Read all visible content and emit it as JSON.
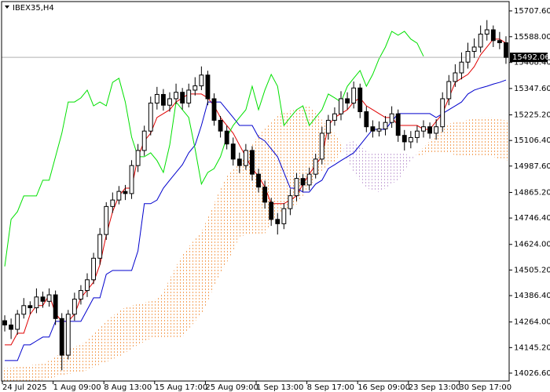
{
  "chart_data": {
    "type": "candlestick",
    "title": "IBEX35,H4",
    "categories": [
      "24 Jul 2025",
      null,
      null,
      null,
      null,
      null,
      null,
      null,
      "1 Aug 09:00",
      null,
      null,
      null,
      null,
      null,
      null,
      null,
      "8 Aug 13:00",
      null,
      null,
      null,
      null,
      null,
      null,
      null,
      "15 Aug 17:00",
      null,
      null,
      null,
      null,
      null,
      null,
      null,
      "25 Aug 09:00",
      null,
      null,
      null,
      null,
      null,
      null,
      null,
      "1 Sep 13:00",
      null,
      null,
      null,
      null,
      null,
      null,
      null,
      "8 Sep 17:00",
      null,
      null,
      null,
      null,
      null,
      null,
      null,
      "16 Sep 09:00",
      null,
      null,
      null,
      null,
      null,
      null,
      null,
      "23 Sep 13:00",
      null,
      null,
      null,
      null,
      null,
      null,
      null,
      "30 Sep 17:00",
      null,
      null,
      null,
      null,
      null,
      null,
      null
    ],
    "open": [
      14270,
      14250,
      14230,
      14300,
      14340,
      14330,
      14380,
      14360,
      14390,
      14280,
      14110,
      14300,
      14370,
      14410,
      14460,
      14560,
      14670,
      14800,
      14830,
      14870,
      14860,
      14990,
      15060,
      15150,
      15280,
      15320,
      15270,
      15300,
      15330,
      15280,
      15340,
      15360,
      15410,
      15300,
      15200,
      15150,
      15090,
      15020,
      14990,
      15060,
      14950,
      14890,
      14820,
      14740,
      14720,
      14790,
      14850,
      14930,
      14900,
      14950,
      15020,
      15140,
      15200,
      15230,
      15300,
      15280,
      15350,
      15240,
      15170,
      15150,
      15160,
      15190,
      15230,
      15130,
      15100,
      15120,
      15150,
      15170,
      15140,
      15170,
      15300,
      15380,
      15420,
      15470,
      15520,
      15540,
      15600,
      15620,
      15570,
      15560
    ],
    "high": [
      14295,
      14280,
      14320,
      14375,
      14360,
      14420,
      14405,
      14420,
      14410,
      14305,
      14320,
      14400,
      14435,
      14490,
      14585,
      14700,
      14820,
      14865,
      14895,
      14900,
      15015,
      15090,
      15175,
      15310,
      15355,
      15345,
      15330,
      15370,
      15350,
      15370,
      15400,
      15450,
      15430,
      15325,
      15220,
      15175,
      15120,
      15050,
      15090,
      15080,
      14975,
      14920,
      14840,
      14770,
      14815,
      14880,
      14955,
      14950,
      14980,
      15045,
      15170,
      15225,
      15260,
      15335,
      15330,
      15380,
      15370,
      15265,
      15200,
      15195,
      15220,
      15265,
      15250,
      15155,
      15150,
      15175,
      15200,
      15190,
      15205,
      15330,
      15410,
      15460,
      15515,
      15560,
      15580,
      15640,
      15665,
      15640,
      15610,
      15590
    ],
    "low": [
      14220,
      14185,
      14205,
      14280,
      14300,
      14305,
      14330,
      14335,
      14250,
      14040,
      14090,
      14270,
      14345,
      14380,
      14440,
      14530,
      14645,
      14770,
      14810,
      14830,
      14835,
      14960,
      15035,
      15130,
      15250,
      15245,
      15240,
      15275,
      15250,
      15260,
      15315,
      15340,
      15270,
      15175,
      15120,
      15065,
      14990,
      14955,
      14970,
      14920,
      14865,
      14790,
      14710,
      14670,
      14695,
      14760,
      14825,
      14870,
      14875,
      14930,
      14995,
      15110,
      15175,
      15200,
      15250,
      15255,
      15210,
      15145,
      15120,
      15125,
      15130,
      15165,
      15100,
      15060,
      15070,
      15095,
      15120,
      15115,
      15110,
      15145,
      15270,
      15355,
      15390,
      15440,
      15490,
      15515,
      15570,
      15540,
      15530,
      15462
    ],
    "close": [
      14250,
      14230,
      14300,
      14340,
      14330,
      14380,
      14360,
      14390,
      14280,
      14110,
      14300,
      14370,
      14410,
      14460,
      14560,
      14670,
      14800,
      14830,
      14870,
      14860,
      14990,
      15060,
      15150,
      15280,
      15320,
      15270,
      15300,
      15330,
      15280,
      15340,
      15360,
      15410,
      15300,
      15200,
      15150,
      15090,
      15020,
      14990,
      15060,
      14950,
      14890,
      14820,
      14740,
      14720,
      14790,
      14850,
      14930,
      14900,
      14950,
      15020,
      15140,
      15200,
      15230,
      15300,
      15280,
      15350,
      15240,
      15170,
      15150,
      15160,
      15190,
      15230,
      15130,
      15100,
      15120,
      15150,
      15170,
      15140,
      15170,
      15300,
      15380,
      15420,
      15470,
      15520,
      15540,
      15600,
      15620,
      15570,
      15560,
      15492.06
    ],
    "up_color": "#ffffff",
    "down_color": "#000000",
    "edge_color": "#000000",
    "lines": [
      {
        "color": "#e00000",
        "values": [
          14158,
          14158,
          14212,
          14212,
          14300,
          14340,
          14340,
          14390,
          14303,
          14267,
          14267,
          14300,
          14376,
          14412,
          14449,
          14530,
          14667,
          14776,
          14849,
          14885,
          14885,
          15031,
          15104,
          15140,
          15213,
          15231,
          15249,
          15285,
          15304,
          15322,
          15322,
          15322,
          15304,
          15267,
          15213,
          15176,
          15140,
          15085,
          15031,
          14976,
          14940,
          14890,
          14813,
          14813,
          14813,
          14830,
          14849,
          14904,
          14950,
          14994,
          15031,
          15176,
          15213,
          15231,
          15249,
          15285,
          15304,
          15267,
          15249,
          15231,
          15213,
          15213,
          15176,
          15176,
          15176,
          15176,
          15158,
          15158,
          15195,
          15231,
          15304,
          15376,
          15395,
          15413,
          15449,
          15504,
          15540,
          15577,
          15577,
          15558
        ]
      },
      {
        "color": "#0000cd",
        "values": [
          14085,
          14085,
          14085,
          14158,
          14158,
          14176,
          14194,
          14194,
          14267,
          14267,
          14267,
          14267,
          14267,
          14321,
          14376,
          14376,
          14485,
          14503,
          14503,
          14503,
          14503,
          14594,
          14813,
          14813,
          14830,
          14885,
          14922,
          14958,
          14994,
          15049,
          15085,
          15176,
          15285,
          15285,
          15285,
          15249,
          15213,
          15176,
          15176,
          15176,
          15122,
          15104,
          15067,
          15031,
          14958,
          14885,
          14885,
          14867,
          14867,
          14904,
          14922,
          14976,
          14994,
          15013,
          15031,
          15049,
          15085,
          15122,
          15158,
          15158,
          15158,
          15195,
          15231,
          15231,
          15231,
          15231,
          15231,
          15231,
          15213,
          15231,
          15249,
          15267,
          15285,
          15322,
          15340,
          15350,
          15358,
          15368,
          15376,
          15387
        ]
      },
      {
        "color": "#00e000",
        "values": [
          14522,
          14740,
          14776,
          14849,
          14849,
          14849,
          14922,
          14922,
          15031,
          15140,
          15285,
          15285,
          15304,
          15340,
          15267,
          15285,
          15267,
          15376,
          15395,
          15285,
          15122,
          15031,
          15031,
          15049,
          15013,
          14958,
          15085,
          15285,
          15249,
          15213,
          15067,
          14904,
          14958,
          14976,
          15031,
          15122,
          15176,
          15213,
          15249,
          15358,
          15249,
          15340,
          15413,
          15358,
          15176,
          15213,
          15249,
          15267,
          15176,
          15213,
          15249,
          15322,
          15304,
          15285,
          15358,
          15395,
          15431,
          15358,
          15413,
          15486,
          15540,
          15613,
          15595,
          15613,
          15577,
          15558,
          15497,
          null,
          null,
          null,
          null,
          null,
          null,
          null,
          null,
          null,
          null,
          null,
          null,
          null
        ]
      }
    ],
    "cloud": {
      "up_color": "#f4a460",
      "down_color": "#c8a8d8",
      "span_a": [
        14049,
        14052,
        14056,
        14060,
        14063,
        14067,
        14070,
        14085,
        14103,
        14121,
        14136,
        14150,
        14158,
        14183,
        14212,
        14238,
        14267,
        14292,
        14314,
        14332,
        14340,
        14347,
        14354,
        14361,
        14372,
        14405,
        14463,
        14522,
        14576,
        14613,
        14649,
        14682,
        14747,
        14813,
        14885,
        14940,
        14976,
        14994,
        15038,
        15085,
        15133,
        15165,
        15195,
        15224,
        15238,
        15245,
        15249,
        15260,
        15267,
        15242,
        15202,
        15169,
        15140,
        15093,
        15013,
        14958,
        14922,
        14885,
        14874,
        14867,
        14885,
        14904,
        14922,
        14965,
        15013,
        15045,
        15074,
        15104,
        15133,
        15162,
        15184,
        15191,
        15195,
        15202,
        15209,
        15213,
        15213,
        15213,
        15205,
        15198
      ],
      "span_b": [
        13976,
        13976,
        13980,
        13983,
        13987,
        13990,
        13994,
        14001,
        14009,
        14016,
        14023,
        14027,
        14030,
        14041,
        14056,
        14067,
        14078,
        14092,
        14103,
        14121,
        14139,
        14158,
        14172,
        14187,
        14194,
        14194,
        14194,
        14194,
        14194,
        14231,
        14267,
        14300,
        14358,
        14431,
        14492,
        14540,
        14594,
        14660,
        14667,
        14667,
        14667,
        14674,
        14722,
        14769,
        14783,
        14798,
        14809,
        14849,
        14893,
        14929,
        14965,
        14994,
        15009,
        15049,
        15096,
        15104,
        15082,
        15056,
        15049,
        15049,
        15049,
        15049,
        15049,
        15049,
        15031,
        15031,
        15042,
        15049,
        15049,
        15049,
        15049,
        15038,
        15031,
        15031,
        15031,
        15031,
        15031,
        15031,
        15020,
        15013
      ]
    },
    "current_price": 15492.06,
    "current_price_color": "#b0b0b0",
    "ylim": [
      13990,
      15751
    ],
    "yticks": [
      {
        "value": 15707.6,
        "label": "15707.60"
      },
      {
        "value": 15588,
        "label": "15588.00"
      },
      {
        "value": 15468.4,
        "label": "15468.40"
      },
      {
        "value": 15347.6,
        "label": "15347.60"
      },
      {
        "value": 15225.2,
        "label": "15225.20"
      },
      {
        "value": 15106.4,
        "label": "15106.40"
      },
      {
        "value": 14987.6,
        "label": "14987.60"
      },
      {
        "value": 14865.2,
        "label": "14865.20"
      },
      {
        "value": 14746.4,
        "label": "14746.40"
      },
      {
        "value": 14624,
        "label": "14624.00"
      },
      {
        "value": 14505.2,
        "label": "14505.20"
      },
      {
        "value": 14386.4,
        "label": "14386.40"
      },
      {
        "value": 14264,
        "label": "14264.00"
      },
      {
        "value": 14145.2,
        "label": "14145.20"
      },
      {
        "value": 14026.6,
        "label": "14026.60"
      }
    ],
    "grid": false
  }
}
